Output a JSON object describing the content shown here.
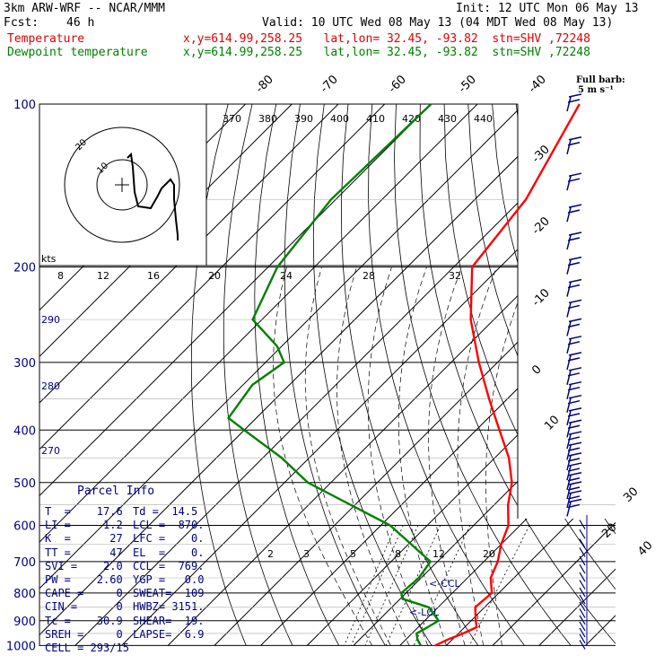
{
  "header": {
    "model": "3km ARW-WRF -- NCAR/MMM",
    "init": "Init: 12 UTC Mon 06 May 13",
    "fcst_label": "Fcst:",
    "fcst_value": "46 h",
    "valid": "Valid: 10 UTC Wed 08 May 13 (04 MDT Wed 08 May 13)",
    "temp_label": "Temperature",
    "dew_label": "Dewpoint temperature",
    "loc_text": "x,y=614.99,258.25   lat,lon= 32.45, -93.82  stn=SHV ,72248"
  },
  "barb_scale": {
    "title": "Full barb:",
    "value": "5 m s⁻¹"
  },
  "parcel_info": {
    "title": "Parcel Info",
    "rows": [
      [
        "T  =    17.6",
        "Td =  14.5"
      ],
      [
        "LI =     1.2",
        "LCL =  870."
      ],
      [
        "K  =      27",
        "LFC =    0."
      ],
      [
        "TT =      47",
        "EL  =    0."
      ],
      [
        "SVI =    2.0",
        "CCL =  769."
      ],
      [
        "PW =    2.60",
        "YGP =   0.0"
      ],
      [
        "CAPE =     0",
        "SWEAT=  109"
      ],
      [
        "CIN =      0",
        "HWBZ= 3151."
      ],
      [
        "Tc =    30.9",
        "SHEAR=  19."
      ],
      [
        "SREH =     0",
        "LAPSE=  6.9"
      ],
      [
        "CELL = 293/15",
        ""
      ]
    ]
  },
  "chart_data": {
    "type": "line",
    "subtype": "skew-T log-P",
    "ylabel": "",
    "pressure_ticks": [
      100,
      200,
      300,
      400,
      500,
      600,
      700,
      800,
      900,
      1000
    ],
    "isotherm_labels_top": [
      -80,
      -70,
      -60,
      -50,
      -40
    ],
    "isotherm_labels_right": [
      -30,
      -20,
      -10,
      0,
      10,
      20,
      30,
      40
    ],
    "theta_labels": [
      370,
      380,
      390,
      400,
      410,
      420,
      430,
      440
    ],
    "dry_adiabat_labels": [
      290,
      280,
      270
    ],
    "mixing_ratio_labels": [
      2,
      3,
      5,
      8,
      12,
      20
    ],
    "hodograph": {
      "kts_label": "kts",
      "ring_labels": [
        "10",
        "20"
      ],
      "speed_labels": [
        8,
        12,
        16,
        20,
        24,
        28,
        32
      ]
    },
    "annotations": [
      "CCL",
      "LCL"
    ],
    "series": [
      {
        "name": "Temperature",
        "color": "#ff0000",
        "points": [
          [
            100,
            -68
          ],
          [
            150,
            -59
          ],
          [
            200,
            -56
          ],
          [
            250,
            -45
          ],
          [
            300,
            -34
          ],
          [
            350,
            -24
          ],
          [
            400,
            -15
          ],
          [
            450,
            -7
          ],
          [
            500,
            -1
          ],
          [
            550,
            3
          ],
          [
            600,
            7.5
          ],
          [
            650,
            10
          ],
          [
            700,
            13
          ],
          [
            750,
            15
          ],
          [
            800,
            18.5
          ],
          [
            850,
            18
          ],
          [
            900,
            21
          ],
          [
            925,
            22.6
          ],
          [
            950,
            21
          ],
          [
            975,
            19
          ],
          [
            1000,
            17.6
          ]
        ]
      },
      {
        "name": "Dewpoint temperature",
        "color": "#008000",
        "points": [
          [
            100,
            -100
          ],
          [
            150,
            -101
          ],
          [
            200,
            -98
          ],
          [
            250,
            -92
          ],
          [
            280,
            -81
          ],
          [
            300,
            -76
          ],
          [
            330,
            -78
          ],
          [
            380,
            -76
          ],
          [
            400,
            -70
          ],
          [
            450,
            -56
          ],
          [
            500,
            -45
          ],
          [
            600,
            -18
          ],
          [
            700,
            -1.5
          ],
          [
            750,
            -0.5
          ],
          [
            800,
            -1
          ],
          [
            820,
            0.5
          ],
          [
            850,
            8
          ],
          [
            900,
            13
          ],
          [
            925,
            12
          ],
          [
            950,
            11
          ],
          [
            975,
            12.5
          ],
          [
            1000,
            14.5
          ]
        ]
      }
    ]
  }
}
